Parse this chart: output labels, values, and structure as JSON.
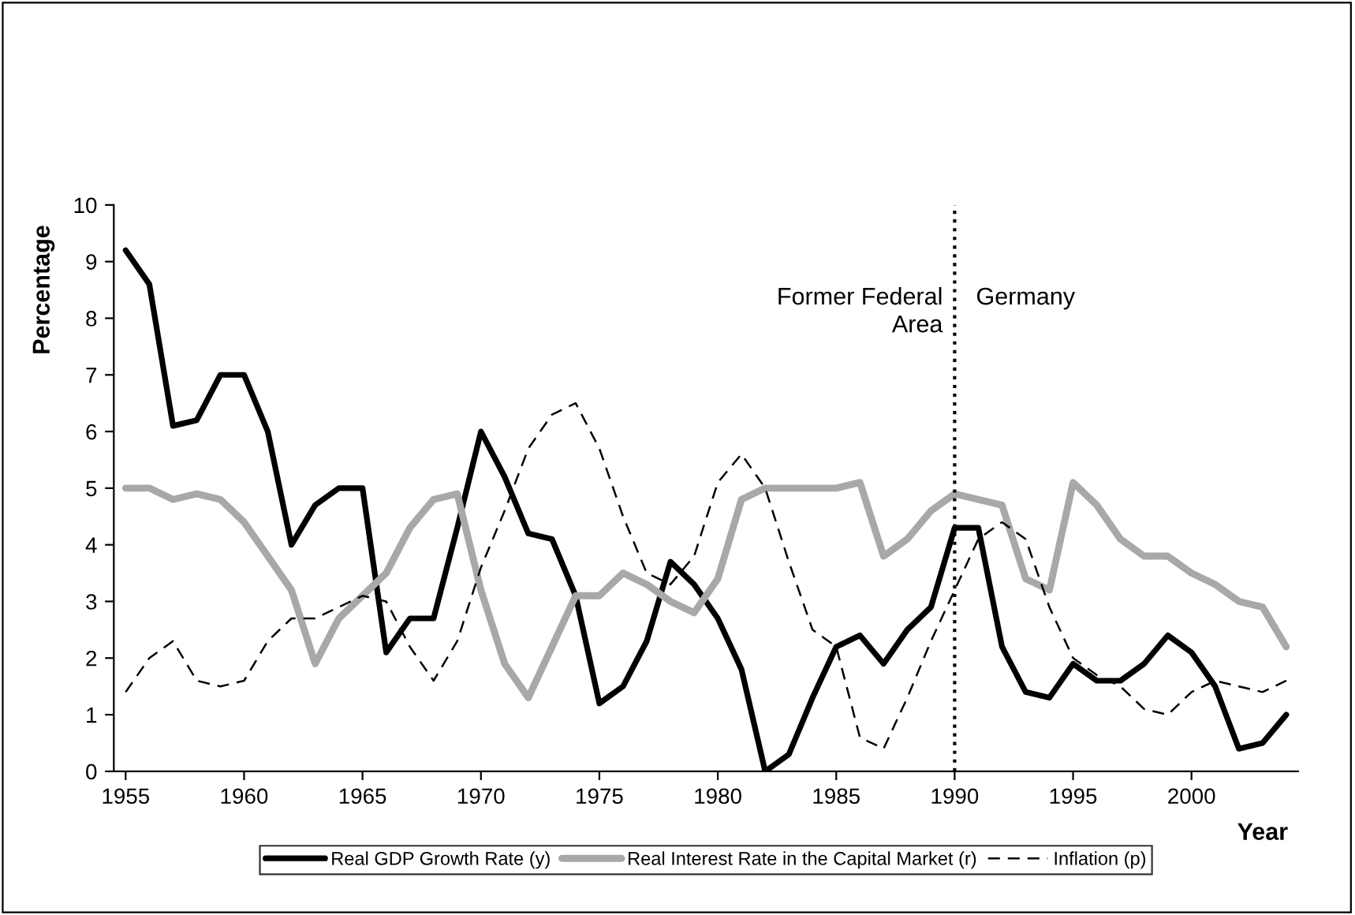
{
  "chart_data": {
    "type": "line",
    "xlabel": "Year",
    "ylabel": "Percentage",
    "categories": [
      "1955",
      null,
      null,
      null,
      null,
      "1960",
      null,
      null,
      null,
      null,
      "1965",
      null,
      null,
      null,
      null,
      "1970",
      null,
      null,
      null,
      null,
      "1975",
      null,
      null,
      null,
      null,
      "1980",
      null,
      null,
      null,
      null,
      "1985",
      null,
      null,
      null,
      null,
      "1990",
      null,
      null,
      null,
      null,
      "1995",
      null,
      null,
      null,
      null,
      "2000",
      null,
      null,
      null,
      null
    ],
    "series": [
      {
        "name": "Real GDP Growth Rate (y)",
        "color": "#000000",
        "line_style": "solid",
        "values": [
          9.2,
          8.6,
          6.1,
          6.2,
          7.0,
          7.0,
          6.0,
          4.0,
          4.7,
          5.0,
          5.0,
          2.1,
          2.7,
          2.7,
          4.3,
          6.0,
          5.2,
          4.2,
          4.1,
          3.1,
          1.2,
          1.5,
          2.3,
          3.7,
          3.3,
          2.7,
          1.8,
          0.0,
          0.3,
          1.3,
          2.2,
          2.4,
          1.9,
          2.5,
          2.9,
          4.3,
          4.3,
          2.2,
          1.4,
          1.3,
          1.9,
          1.6,
          1.6,
          1.9,
          2.4,
          2.1,
          1.5,
          0.4,
          0.5,
          1.0
        ]
      },
      {
        "name": "Real Interest Rate in the Capital Market (r)",
        "color": "#a8a8a8",
        "line_style": "solid",
        "values": [
          5.0,
          5.0,
          4.8,
          4.9,
          4.8,
          4.4,
          3.8,
          3.2,
          1.9,
          2.7,
          3.1,
          3.5,
          4.3,
          4.8,
          4.9,
          3.2,
          1.9,
          1.3,
          2.2,
          3.1,
          3.1,
          3.5,
          3.3,
          3.0,
          2.8,
          3.4,
          4.8,
          5.0,
          5.0,
          5.0,
          5.0,
          5.1,
          3.8,
          4.1,
          4.6,
          4.9,
          4.8,
          4.7,
          3.4,
          3.2,
          5.1,
          4.7,
          4.1,
          3.8,
          3.8,
          3.5,
          3.3,
          3.0,
          2.9,
          2.2
        ]
      },
      {
        "name": "Inflation (p)",
        "color": "#000000",
        "line_style": "dashed",
        "values": [
          1.4,
          2.0,
          2.3,
          1.6,
          1.5,
          1.6,
          2.3,
          2.7,
          2.7,
          2.9,
          3.1,
          3.0,
          2.2,
          1.6,
          2.3,
          3.6,
          4.6,
          5.7,
          6.3,
          6.5,
          5.7,
          4.5,
          3.5,
          3.3,
          3.8,
          5.1,
          5.6,
          5.0,
          3.7,
          2.5,
          2.2,
          0.6,
          0.4,
          1.3,
          2.3,
          3.2,
          4.1,
          4.4,
          4.1,
          2.9,
          2.0,
          1.7,
          1.5,
          1.1,
          1.0,
          1.4,
          1.6,
          1.5,
          1.4,
          1.6
        ]
      }
    ],
    "ylim": [
      0,
      10
    ],
    "yticks": [
      0,
      1,
      2,
      3,
      4,
      5,
      6,
      7,
      8,
      9,
      10
    ],
    "ref_lines": [
      {
        "axis": "x",
        "value": "1990",
        "color": "#000000",
        "line_style": "dotted"
      }
    ],
    "annotations": [
      "Former Federal\nArea",
      "Germany"
    ],
    "grid": false,
    "legend": "bottom",
    "marker": "none"
  }
}
